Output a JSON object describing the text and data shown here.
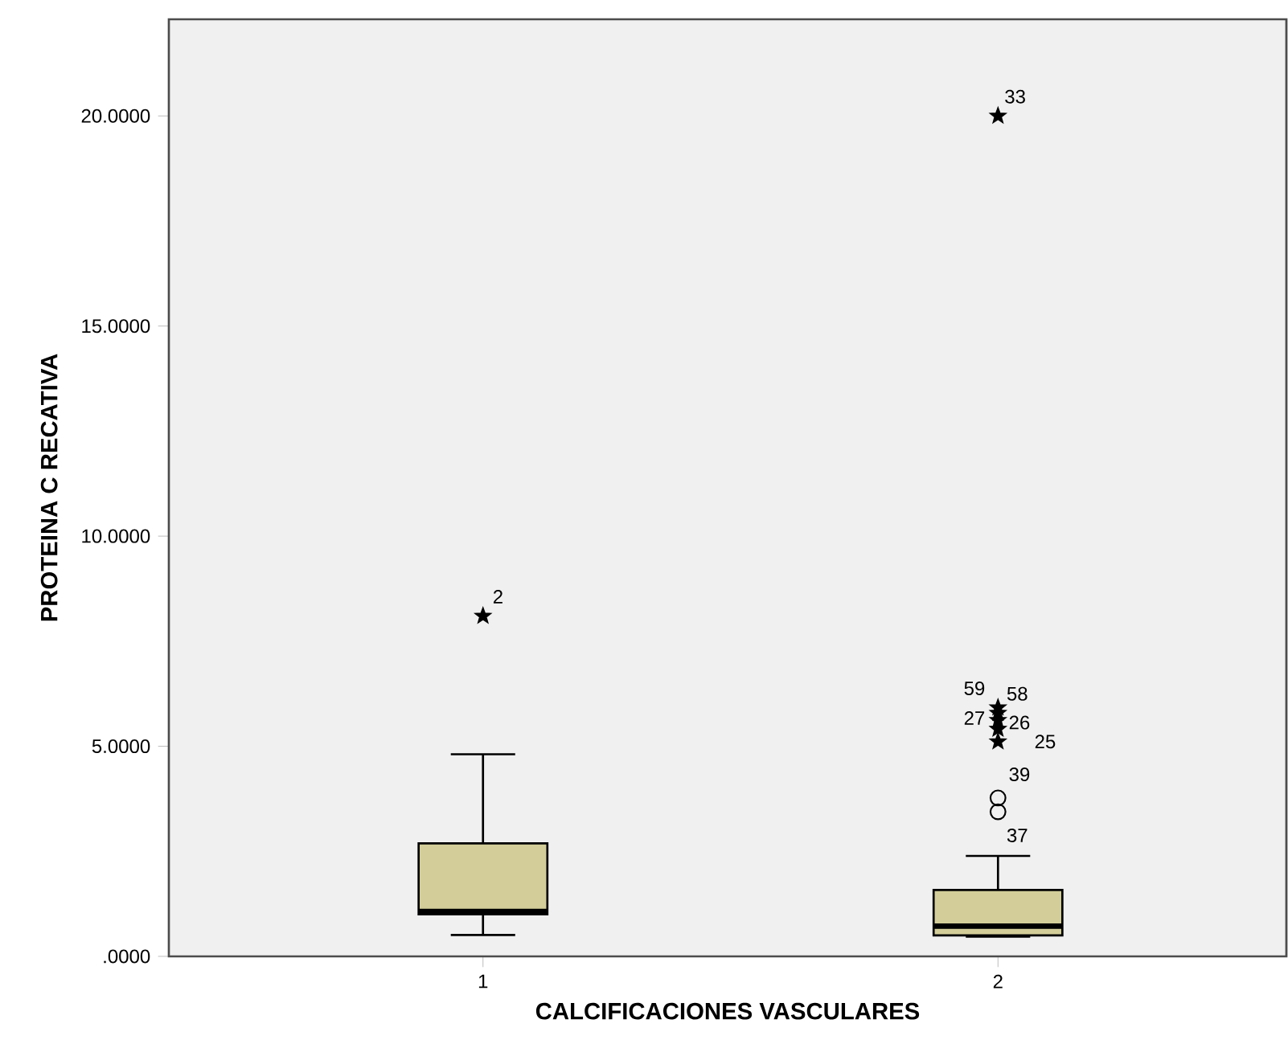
{
  "chart_data": {
    "type": "box",
    "xlabel": "CALCIFICACIONES VASCULARES",
    "ylabel": "PROTEINA C RECATIVA",
    "categories": [
      "1",
      "2"
    ],
    "ylim": [
      0,
      22.3
    ],
    "yticks": [
      {
        "value": 0,
        "label": ".0000"
      },
      {
        "value": 5,
        "label": "5.0000"
      },
      {
        "value": 10,
        "label": "10.0000"
      },
      {
        "value": 15,
        "label": "15.0000"
      },
      {
        "value": 20,
        "label": "20.0000"
      }
    ],
    "series": [
      {
        "color": "#d3ce99",
        "boxes": [
          {
            "low": 0.51,
            "q1": 1.0,
            "median": 1.07,
            "q3": 2.69,
            "high": 4.81
          },
          {
            "low": 0.47,
            "q1": 0.5,
            "median": 0.72,
            "q3": 1.58,
            "high": 2.39
          }
        ]
      },
      {
        "type": "scatter",
        "marker": "circle",
        "color": "#000000",
        "x": [
          "2",
          "2"
        ],
        "values": [
          3.44,
          3.77
        ]
      },
      {
        "type": "scatter",
        "marker": "star",
        "color": "#000000",
        "x": [
          "1",
          "2",
          "2",
          "2",
          "2",
          "2",
          "2"
        ],
        "values": [
          8.1,
          5.11,
          5.41,
          5.62,
          5.79,
          5.92,
          20.0
        ]
      }
    ],
    "annotations": [
      {
        "text": "33",
        "x": "2",
        "y": 20.0
      },
      {
        "text": "2",
        "x": "1",
        "y": 8.1
      },
      {
        "text": "59",
        "x": "2",
        "y": 5.92
      },
      {
        "text": "58",
        "x": "2",
        "y": 5.79
      },
      {
        "text": "27",
        "x": "2",
        "y": 5.62
      },
      {
        "text": "26",
        "x": "2",
        "y": 5.41
      },
      {
        "text": "25",
        "x": "2",
        "y": 5.11
      },
      {
        "text": "39",
        "x": "2",
        "y": 3.77
      },
      {
        "text": "37",
        "x": "2",
        "y": 3.44
      }
    ]
  }
}
